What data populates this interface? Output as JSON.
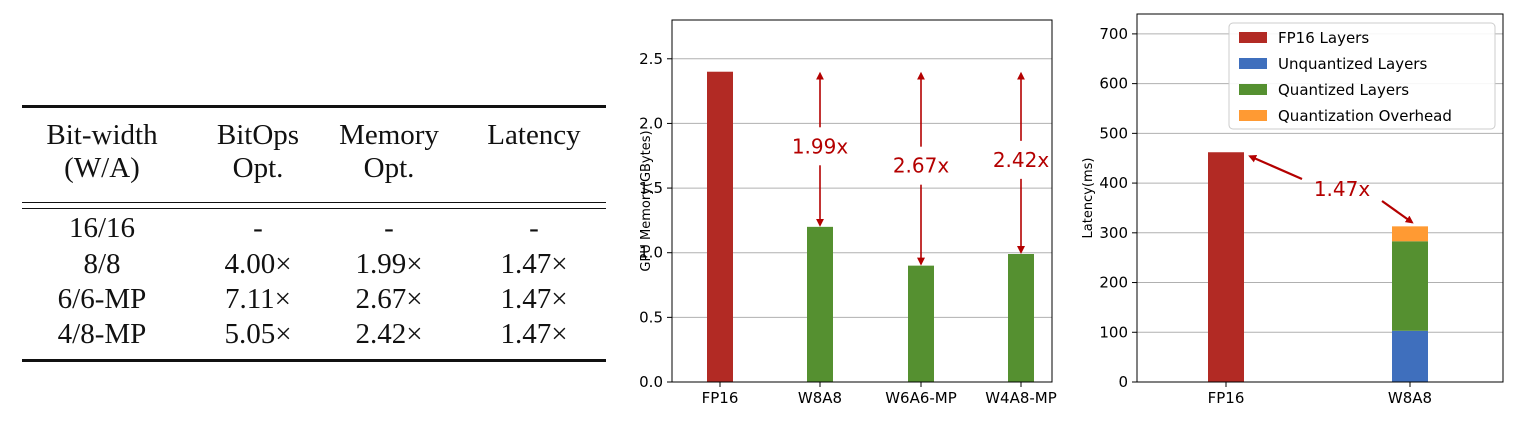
{
  "table": {
    "headers": [
      {
        "line1": "Bit-width",
        "line2": "(W/A)"
      },
      {
        "line1": "BitOps",
        "line2": "Opt."
      },
      {
        "line1": "Memory",
        "line2": "Opt."
      },
      {
        "line1": "Latency",
        "line2": ""
      }
    ],
    "rows": [
      [
        "16/16",
        "-",
        "-",
        "-"
      ],
      [
        "8/8",
        "4.00×",
        "1.99×",
        "1.47×"
      ],
      [
        "6/6-MP",
        "7.11×",
        "2.67×",
        "1.47×"
      ],
      [
        "4/8-MP",
        "5.05×",
        "2.42×",
        "1.47×"
      ]
    ]
  },
  "chart_data": [
    {
      "type": "bar",
      "ylabel": "GPU Memory(GBytes)",
      "xlabel": "",
      "ylim": [
        0,
        2.8
      ],
      "yticks": [
        "0.0",
        "0.5",
        "1.0",
        "1.5",
        "2.0",
        "2.5"
      ],
      "grid": true,
      "categories": [
        "FP16",
        "W8A8",
        "W6A6-MP",
        "W4A8-MP"
      ],
      "values": [
        2.4,
        1.2,
        0.9,
        0.99
      ],
      "bar_colors": [
        "#b22a24",
        "#559030",
        "#559030",
        "#559030"
      ],
      "annotations": [
        {
          "category": "W8A8",
          "text": "1.99x"
        },
        {
          "category": "W6A6-MP",
          "text": "2.67x"
        },
        {
          "category": "W4A8-MP",
          "text": "2.42x"
        }
      ],
      "annotation_color": "#b40000"
    },
    {
      "type": "bar",
      "stacked": true,
      "ylabel": "Latency(ms)",
      "xlabel": "",
      "ylim": [
        0,
        740
      ],
      "yticks": [
        "0",
        "100",
        "200",
        "300",
        "400",
        "500",
        "600",
        "700"
      ],
      "grid": true,
      "categories": [
        "FP16",
        "W8A8"
      ],
      "series": [
        {
          "name": "FP16 Layers",
          "color": "#b22a24",
          "values": [
            462,
            0
          ]
        },
        {
          "name": "Unquantized Layers",
          "color": "#3f6fbd",
          "values": [
            0,
            103
          ]
        },
        {
          "name": "Quantized Layers",
          "color": "#559030",
          "values": [
            0,
            180
          ]
        },
        {
          "name": "Quantization Overhead",
          "color": "#ff9a33",
          "values": [
            0,
            30
          ]
        }
      ],
      "legend_position": "top-right",
      "annotation": {
        "text": "1.47x"
      },
      "annotation_color": "#b40000"
    }
  ]
}
